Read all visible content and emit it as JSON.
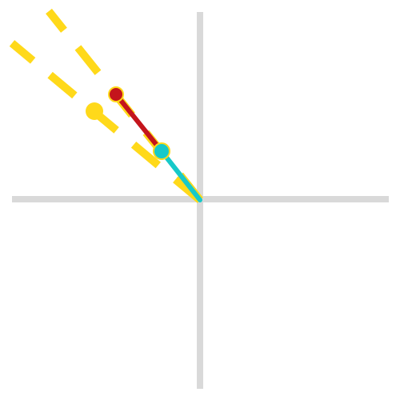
{
  "canvas": {
    "background": "#ffffff"
  },
  "colors": {
    "axis": "#d9d9d9",
    "guide": "#ffd91a",
    "red_vector": "#c4151c",
    "cyan_vector": "#17c9c9",
    "dot_outline": "#ffd91a"
  },
  "elements": {
    "horizontal_axis": "horizontal-axis",
    "vertical_axis": "vertical-axis",
    "guide_line_steep": "dashed-guide-line",
    "guide_line_shallow": "dashed-guide-line",
    "red_segment": "red-vector",
    "cyan_segment": "cyan-vector",
    "red_handle": "red-handle",
    "cyan_handle": "cyan-handle",
    "yellow_handle": "yellow-handle"
  }
}
